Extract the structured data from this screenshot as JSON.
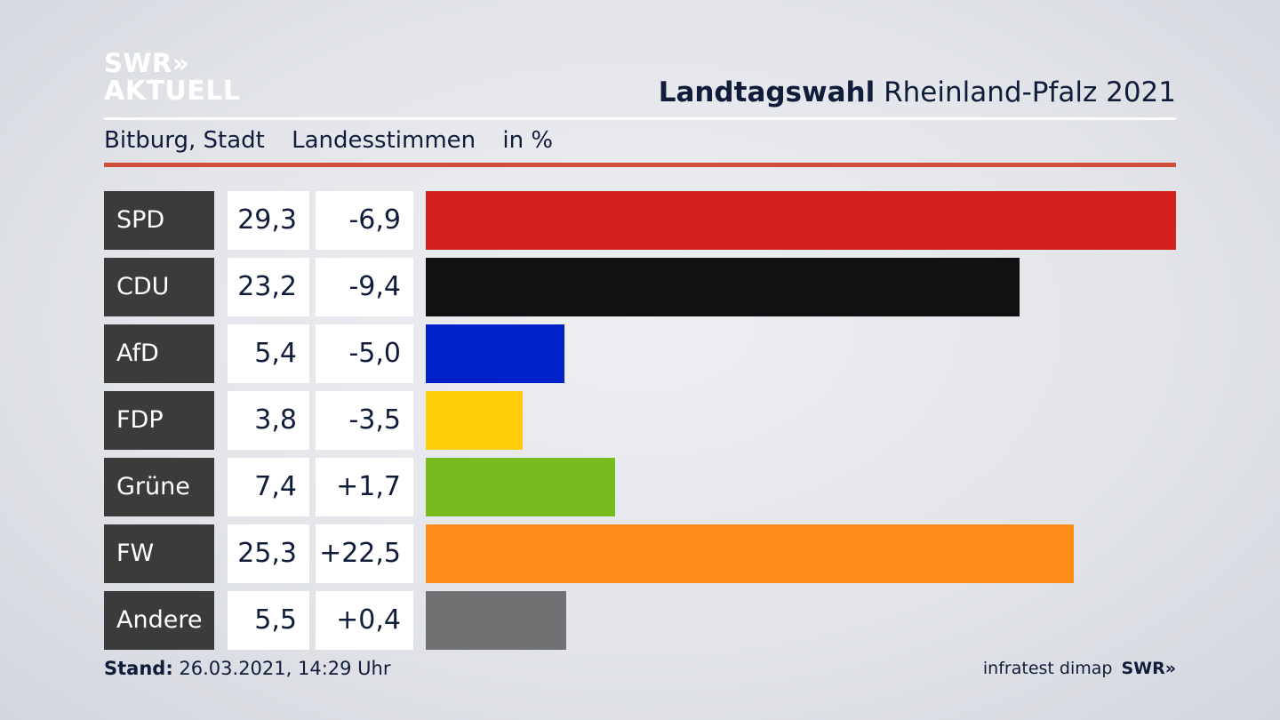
{
  "logo": {
    "line1": "SWR»",
    "line2": "AKTUELL"
  },
  "header": {
    "title_bold": "Landtagswahl",
    "title_rest": " Rheinland-Pfalz 2021"
  },
  "subtitle": {
    "place": "Bitburg, Stadt",
    "vote_type": "Landesstimmen",
    "unit": "in %"
  },
  "chart_data": {
    "type": "bar",
    "orientation": "horizontal",
    "categories": [
      "SPD",
      "CDU",
      "AfD",
      "FDP",
      "Grüne",
      "FW",
      "Andere"
    ],
    "values": [
      29.3,
      23.2,
      5.4,
      3.8,
      7.4,
      25.3,
      5.5
    ],
    "value_labels": [
      "29,3",
      "23,2",
      "5,4",
      "3,8",
      "7,4",
      "25,3",
      "5,5"
    ],
    "change_labels": [
      "-6,9",
      "-9,4",
      "-5,0",
      "-3,5",
      "+1,7",
      "+22,5",
      "+0,4"
    ],
    "changes": [
      -6.9,
      -9.4,
      -5.0,
      -3.5,
      1.7,
      22.5,
      0.4
    ],
    "colors": [
      "#d62020",
      "#111111",
      "#0021c8",
      "#ffcc09",
      "#78bb1e",
      "#fd8c19",
      "#707173"
    ],
    "xlim": [
      0,
      29.3
    ],
    "title": "Landtagswahl Rheinland-Pfalz 2021"
  },
  "footer": {
    "stand_label": "Stand:",
    "stand_value": " 26.03.2021, 14:29 Uhr",
    "source": "infratest dimap",
    "brand": "SWR»"
  }
}
